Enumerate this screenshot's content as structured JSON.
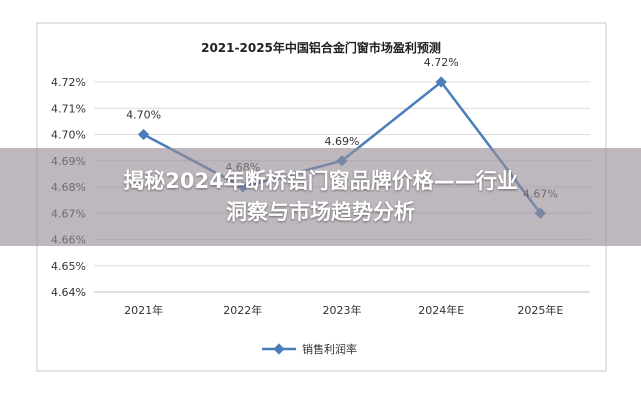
{
  "chart_data": {
    "type": "line",
    "title": "2021-2025年中国铝合金门窗市场盈利预测",
    "categories": [
      "2021年",
      "2022年",
      "2023年",
      "2024年E",
      "2025年E"
    ],
    "series": [
      {
        "name": "销售利润率",
        "values": [
          4.7,
          4.68,
          4.69,
          4.72,
          4.67
        ],
        "labels": [
          "4.70%",
          "4.68%",
          "4.69%",
          "4.72%",
          "4.67%"
        ],
        "color": "#4a7ebb"
      }
    ],
    "yticks": [
      "4.64%",
      "4.65%",
      "4.66%",
      "4.67%",
      "4.68%",
      "4.69%",
      "4.70%",
      "4.71%",
      "4.72%"
    ],
    "ylim": [
      4.64,
      4.72
    ],
    "xlabel": "",
    "ylabel": "",
    "grid": true,
    "legend": "bottom"
  },
  "overlay": {
    "line1": "揭秘2024年断桥铝门窗品牌价格——行业",
    "line2": "洞察与市场趋势分析"
  }
}
